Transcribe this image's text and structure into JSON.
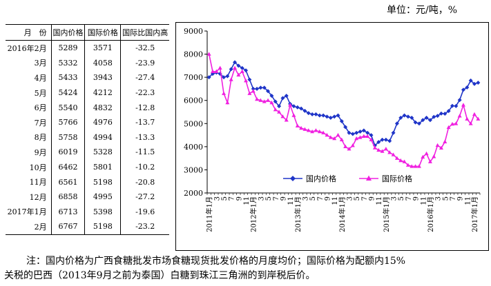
{
  "unit_label": "单位：元/吨，%",
  "table": {
    "headers": [
      "月　份",
      "国内价格",
      "国际价格",
      "国际比国内高"
    ],
    "rows": [
      [
        "2016年2月",
        "5289",
        "3571",
        "-32.5"
      ],
      [
        "3月",
        "5332",
        "4058",
        "-23.9"
      ],
      [
        "4月",
        "5433",
        "3943",
        "-27.4"
      ],
      [
        "5月",
        "5424",
        "4212",
        "-22.3"
      ],
      [
        "6月",
        "5540",
        "4832",
        "-12.8"
      ],
      [
        "7月",
        "5766",
        "4976",
        "-13.7"
      ],
      [
        "8月",
        "5758",
        "4994",
        "-13.3"
      ],
      [
        "9月",
        "6019",
        "5328",
        "-11.5"
      ],
      [
        "10月",
        "6462",
        "5801",
        "-10.2"
      ],
      [
        "11月",
        "6561",
        "5198",
        "-20.8"
      ],
      [
        "12月",
        "6858",
        "4995",
        "-27.2"
      ],
      [
        "2017年1月",
        "6713",
        "5398",
        "-19.6"
      ],
      [
        "2月",
        "6767",
        "5198",
        "-23.2"
      ]
    ]
  },
  "note": {
    "line1": "注：国内价格为广西食糖批发市场食糖现货批发价格的月度均价；国际价格为配额内15%",
    "line2": "关税的巴西（2013年9月之前为泰国）白糖到珠江三角洲的到岸税后价。"
  },
  "chart_data": {
    "type": "line",
    "ylim": [
      2000,
      9000
    ],
    "y_ticks": [
      2000,
      3000,
      4000,
      5000,
      6000,
      7000,
      8000,
      9000
    ],
    "x_tick_labels": [
      "2011年1月",
      "3",
      "5",
      "7",
      "9",
      "11",
      "2012年1月",
      "3",
      "5",
      "7",
      "9",
      "11",
      "2013年1月",
      "3",
      "5",
      "7",
      "9",
      "11",
      "2014年1月",
      "3",
      "5",
      "7",
      "9",
      "11",
      "2015年1月",
      "3",
      "5",
      "7",
      "9",
      "11",
      "2016年1月",
      "3",
      "5",
      "7",
      "9",
      "11",
      "2017年1月"
    ],
    "x": [
      "2011-01",
      "2011-02",
      "2011-03",
      "2011-04",
      "2011-05",
      "2011-06",
      "2011-07",
      "2011-08",
      "2011-09",
      "2011-10",
      "2011-11",
      "2011-12",
      "2012-01",
      "2012-02",
      "2012-03",
      "2012-04",
      "2012-05",
      "2012-06",
      "2012-07",
      "2012-08",
      "2012-09",
      "2012-10",
      "2012-11",
      "2012-12",
      "2013-01",
      "2013-02",
      "2013-03",
      "2013-04",
      "2013-05",
      "2013-06",
      "2013-07",
      "2013-08",
      "2013-09",
      "2013-10",
      "2013-11",
      "2013-12",
      "2014-01",
      "2014-02",
      "2014-03",
      "2014-04",
      "2014-05",
      "2014-06",
      "2014-07",
      "2014-08",
      "2014-09",
      "2014-10",
      "2014-11",
      "2014-12",
      "2015-01",
      "2015-02",
      "2015-03",
      "2015-04",
      "2015-05",
      "2015-06",
      "2015-07",
      "2015-08",
      "2015-09",
      "2015-10",
      "2015-11",
      "2015-12",
      "2016-01",
      "2016-02",
      "2016-03",
      "2016-04",
      "2016-05",
      "2016-06",
      "2016-07",
      "2016-08",
      "2016-09",
      "2016-10",
      "2016-11",
      "2016-12",
      "2017-01",
      "2017-02"
    ],
    "series": [
      {
        "name": "国内价格",
        "color": "#1f35c8",
        "marker": "diamond",
        "values": [
          7000,
          7150,
          7200,
          7150,
          7000,
          7050,
          7350,
          7650,
          7500,
          7400,
          7300,
          6900,
          6500,
          6500,
          6550,
          6550,
          6400,
          6200,
          5950,
          5750,
          6100,
          6200,
          5850,
          5750,
          5700,
          5650,
          5550,
          5450,
          5400,
          5400,
          5350,
          5350,
          5300,
          5250,
          5300,
          5350,
          5100,
          4850,
          4600,
          4550,
          4600,
          4650,
          4700,
          4600,
          4500,
          4050,
          4200,
          4300,
          4300,
          4250,
          4600,
          5000,
          5250,
          5350,
          5300,
          5250,
          5050,
          5000,
          5150,
          5250,
          5150,
          5289,
          5332,
          5433,
          5424,
          5540,
          5766,
          5758,
          6019,
          6462,
          6561,
          6858,
          6713,
          6767
        ]
      },
      {
        "name": "国际价格",
        "color": "#f020e0",
        "marker": "triangle",
        "values": [
          8000,
          7250,
          7250,
          7400,
          6300,
          5900,
          6900,
          7400,
          7100,
          7250,
          6850,
          6300,
          6400,
          6050,
          6000,
          5950,
          6000,
          5900,
          5600,
          5500,
          5300,
          5150,
          5800,
          5350,
          4900,
          4800,
          4750,
          4700,
          4650,
          4700,
          4650,
          4600,
          4500,
          4400,
          4350,
          4500,
          4300,
          4000,
          3900,
          4050,
          4350,
          4400,
          4450,
          4450,
          4300,
          3950,
          3850,
          3800,
          3900,
          3750,
          3650,
          3500,
          3400,
          3350,
          3200,
          3150,
          3150,
          3150,
          3550,
          3700,
          3350,
          3571,
          4058,
          3943,
          4212,
          4832,
          4976,
          4994,
          5328,
          5801,
          5198,
          4995,
          5398,
          5198
        ]
      }
    ]
  }
}
